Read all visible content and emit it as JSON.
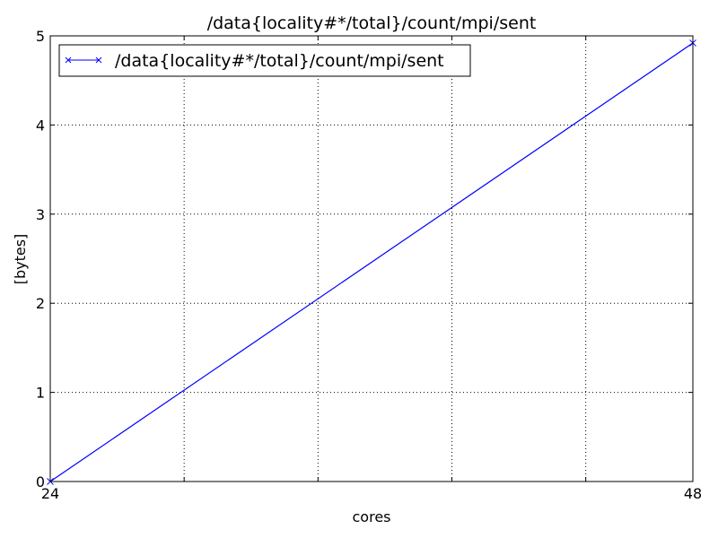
{
  "chart_data": {
    "type": "line",
    "title": "/data{locality#*/total}/count/mpi/sent",
    "xlabel": "cores",
    "ylabel": "[bytes]",
    "xlim": [
      24,
      48
    ],
    "ylim": [
      0,
      5
    ],
    "xticks": [
      24,
      48
    ],
    "xtick_labels": [
      "24",
      "48"
    ],
    "x_gridlines": [
      29,
      34,
      39,
      44
    ],
    "yticks": [
      0,
      1,
      2,
      3,
      4,
      5
    ],
    "ytick_labels": [
      "0",
      "1",
      "2",
      "3",
      "4",
      "5"
    ],
    "grid": true,
    "legend": "top-left",
    "series": [
      {
        "name": "/data{locality#*/total}/count/mpi/sent",
        "color": "#0000ff",
        "marker": "x",
        "x": [
          24,
          48
        ],
        "y": [
          0,
          4.92
        ]
      }
    ]
  }
}
